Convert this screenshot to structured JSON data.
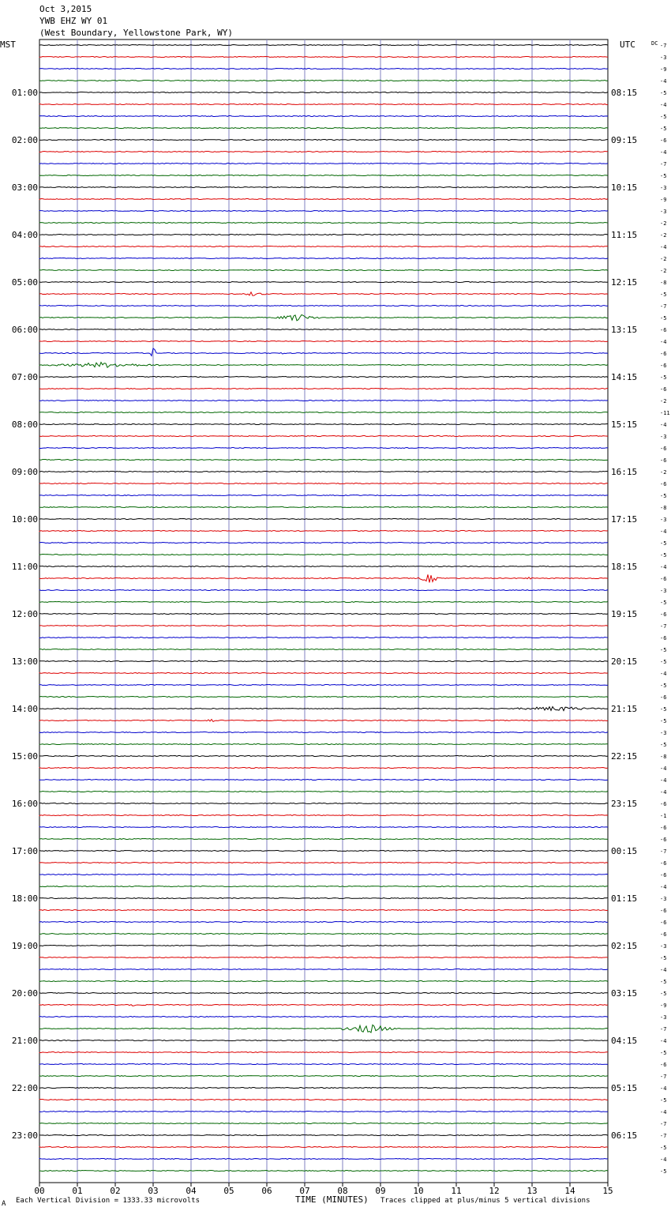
{
  "header": {
    "date": "Oct 3,2015",
    "station": "YWB EHZ WY 01",
    "location": "(West Boundary, Yellowstone Park, WY)"
  },
  "left_tz": "MST",
  "right_tz": "UTC",
  "dc_label": "DC",
  "footer": {
    "scale_note": "Each Vertical Division = 1333.33 microvolts",
    "xlabel": "TIME (MINUTES)",
    "clip_note": "Traces clipped at plus/minus 5 vertical divisions",
    "corner_mark": "A"
  },
  "chart_data": {
    "type": "line",
    "title": "YWB EHZ WY 01 helicorder Oct 3,2015",
    "xlabel": "TIME (MINUTES)",
    "x_ticks": [
      "00",
      "01",
      "02",
      "03",
      "04",
      "05",
      "06",
      "07",
      "08",
      "09",
      "10",
      "11",
      "12",
      "13",
      "14",
      "15"
    ],
    "xlim": [
      0,
      15
    ],
    "trace_colors": [
      "#000000",
      "#dd0000",
      "#0000cc",
      "#006600"
    ],
    "grid_color": "#8080c0",
    "hour_labels_left": [
      "01:00",
      "02:00",
      "03:00",
      "04:00",
      "05:00",
      "06:00",
      "07:00",
      "08:00",
      "09:00",
      "10:00",
      "11:00",
      "12:00",
      "13:00",
      "14:00",
      "15:00",
      "16:00",
      "17:00",
      "18:00",
      "19:00",
      "20:00",
      "21:00",
      "22:00",
      "23:00"
    ],
    "hour_labels_right": [
      "08:15",
      "09:15",
      "10:15",
      "11:15",
      "12:15",
      "13:15",
      "14:15",
      "15:15",
      "16:15",
      "17:15",
      "18:15",
      "19:15",
      "20:15",
      "21:15",
      "22:15",
      "23:15",
      "00:15",
      "01:15",
      "02:15",
      "03:15",
      "04:15",
      "05:15",
      "06:15"
    ],
    "dc_offsets": [
      "-7",
      "-3",
      "-9",
      "-4",
      "-5",
      "-4",
      "-5",
      "-5",
      "-6",
      "-4",
      "-7",
      "-5",
      "-3",
      "-9",
      "-3",
      "-2",
      "-2",
      "-4",
      "-2",
      "-2",
      "-8",
      "-5",
      "-7",
      "-5",
      "-6",
      "-4",
      "-6",
      "-6",
      "-5",
      "-6",
      "-2",
      "-11",
      "-4",
      "-3",
      "-6",
      "-6",
      "-2",
      "-6",
      "-5",
      "-8",
      "-3",
      "-4",
      "-5",
      "-5",
      "-4",
      "-6",
      "-3",
      "-5",
      "-6",
      "-7",
      "-6",
      "-5",
      "-5",
      "-4",
      "-5",
      "-6",
      "-5",
      "-5",
      "-3",
      "-5",
      "-8",
      "-4",
      "-4",
      "-4",
      "-6",
      "-1",
      "-6",
      "-6",
      "-7",
      "-6",
      "-6",
      "-4",
      "-3",
      "-6",
      "-6",
      "-6",
      "-3",
      "-5",
      "-4",
      "-5",
      "-5",
      "-9",
      "-3",
      "-7",
      "-4",
      "-5",
      "-6",
      "-7",
      "-4",
      "-5",
      "-4",
      "-7",
      "-7",
      "-5",
      "-4",
      "-5"
    ],
    "events": [
      {
        "trace": 21,
        "start_min": 5.3,
        "end_min": 6.0,
        "amp_div": 1.0
      },
      {
        "trace": 23,
        "start_min": 6.2,
        "end_min": 7.4,
        "amp_div": 1.6
      },
      {
        "trace": 26,
        "start_min": 2.95,
        "end_min": 3.05,
        "amp_div": 5.0
      },
      {
        "trace": 26,
        "start_min": 6.3,
        "end_min": 6.5,
        "amp_div": 0.6
      },
      {
        "trace": 27,
        "start_min": 0.2,
        "end_min": 3.2,
        "amp_div": 1.2
      },
      {
        "trace": 45,
        "start_min": 10.0,
        "end_min": 10.6,
        "amp_div": 2.0
      },
      {
        "trace": 45,
        "start_min": 12.8,
        "end_min": 13.0,
        "amp_div": 0.8
      },
      {
        "trace": 52,
        "start_min": 4.1,
        "end_min": 4.3,
        "amp_div": 0.6
      },
      {
        "trace": 56,
        "start_min": 12.5,
        "end_min": 14.8,
        "amp_div": 1.1
      },
      {
        "trace": 57,
        "start_min": 4.3,
        "end_min": 4.7,
        "amp_div": 1.0
      },
      {
        "trace": 81,
        "start_min": 2.0,
        "end_min": 2.8,
        "amp_div": 0.7
      },
      {
        "trace": 83,
        "start_min": 8.0,
        "end_min": 9.4,
        "amp_div": 2.0
      }
    ]
  }
}
